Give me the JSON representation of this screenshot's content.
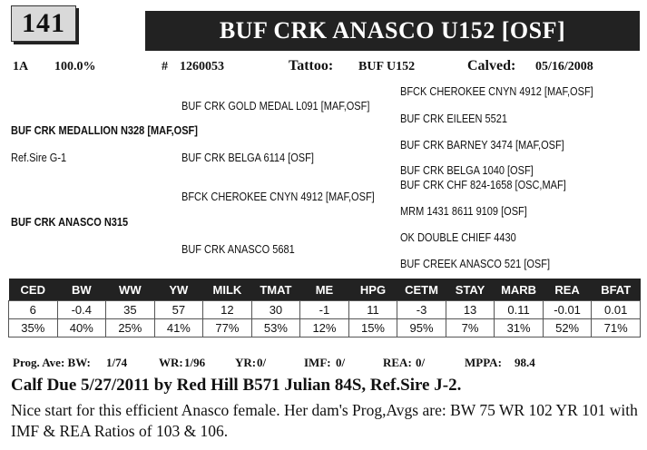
{
  "lot_number": "141",
  "animal_name": "BUF CRK ANASCO U152 [OSF]",
  "info": {
    "code": "1A",
    "percent": "100.0%",
    "reg_label": "#",
    "reg_number": "1260053",
    "tattoo_label": "Tattoo:",
    "tattoo": "BUF U152",
    "calved_label": "Calved:",
    "calved": "05/16/2008"
  },
  "pedigree": {
    "sire": "BUF CRK MEDALLION N328 [MAF,OSF]",
    "ref_sire": "Ref.Sire G-1",
    "dam": "BUF CRK ANASCO N315",
    "sire_sire": "BUF CRK GOLD MEDAL L091 [MAF,OSF]",
    "sire_dam": "BUF CRK BELGA 6114  [OSF]",
    "dam_sire": "BFCK CHEROKEE CNYN 4912 [MAF,OSF]",
    "dam_dam": "BUF CRK ANASCO 5681",
    "ss_sire": "BFCK CHEROKEE CNYN 4912 [MAF,OSF]",
    "ss_dam": "BUF CRK EILEEN 5521",
    "sd_sire": "BUF CRK BARNEY 3474 [MAF,OSF]",
    "sd_dam": "BUF CRK BELGA 1040  [OSF]",
    "ds_sire": "BUF CRK CHF 824-1658  [OSC,MAF]",
    "ds_dam": "MRM 1431 8611 9109 [OSF]",
    "dd_sire": "OK DOUBLE CHIEF 4430",
    "dd_dam": "BUF CREEK ANASCO 521 [OSF]"
  },
  "epd_table": {
    "headers": [
      "CED",
      "BW",
      "WW",
      "YW",
      "MILK",
      "TMAT",
      "ME",
      "HPG",
      "CETM",
      "STAY",
      "MARB",
      "REA",
      "BFAT"
    ],
    "values": [
      "6",
      "-0.4",
      "35",
      "57",
      "12",
      "30",
      "-1",
      "11",
      "-3",
      "13",
      "0.11",
      "-0.01",
      "0.01"
    ],
    "accuracy": [
      "35%",
      "40%",
      "25%",
      "41%",
      "77%",
      "53%",
      "12%",
      "15%",
      "95%",
      "7%",
      "31%",
      "52%",
      "71%"
    ]
  },
  "prog": {
    "label": "Prog. Ave: BW:",
    "bw": "1/74",
    "wr_label": "WR:",
    "wr": "1/96",
    "yr_label": "YR:",
    "yr": "0/",
    "imf_label": "IMF:",
    "imf": "0/",
    "rea_label": "REA:",
    "rea": "0/",
    "mppa_label": "MPPA:",
    "mppa": "98.4"
  },
  "calf_due": "Calf Due 5/27/2011 by Red Hill B571 Julian 84S, Ref.Sire J-2.",
  "description": "Nice start for this efficient Anasco female. Her dam's Prog,Avgs are: BW 75  WR 102  YR 101 with IMF & REA Ratios of 103 & 106."
}
